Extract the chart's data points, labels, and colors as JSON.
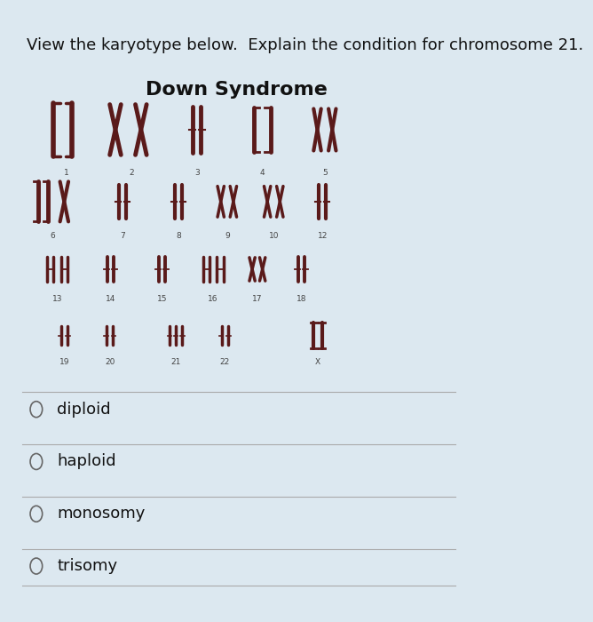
{
  "background_color": "#dce8f0",
  "title_text": "View the karyotype below.  Explain the condition for chromosome 21.",
  "title_fontsize": 13,
  "title_color": "#111111",
  "subtitle_text": "Down Syndrome",
  "subtitle_fontsize": 16,
  "subtitle_color": "#111111",
  "subtitle_bold": true,
  "options": [
    "diploid",
    "haploid",
    "monosomy",
    "trisomy"
  ],
  "option_fontsize": 13,
  "option_color": "#111111",
  "chromosome_color": "#5a1a1a",
  "fig_width": 6.68,
  "fig_height": 7.0,
  "dpi": 100
}
